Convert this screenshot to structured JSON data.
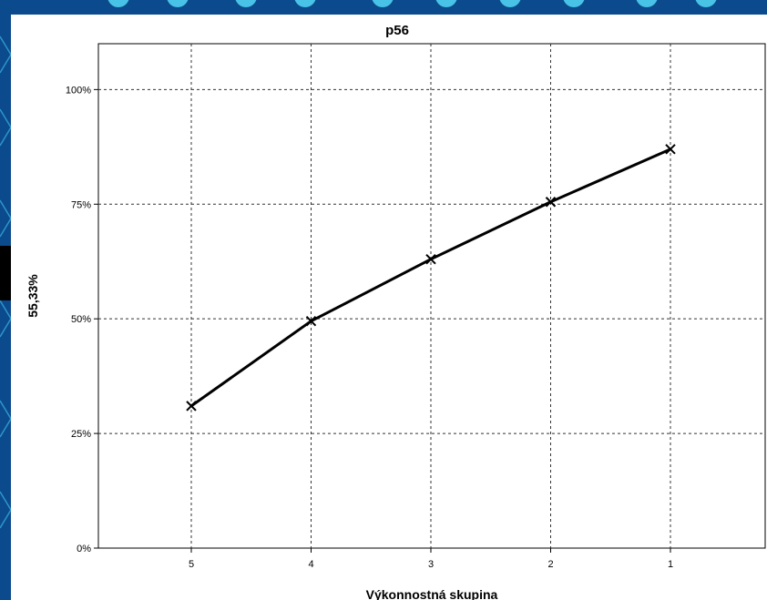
{
  "chart_data": {
    "type": "line",
    "title": "p56",
    "xlabel": "Výkonnostná skupina",
    "ylabel": "55,33%",
    "categories": [
      "5",
      "4",
      "3",
      "2",
      "1"
    ],
    "series": [
      {
        "values": [
          31,
          49.5,
          63,
          75.5,
          87
        ]
      }
    ],
    "ylim": [
      0,
      110
    ],
    "yticks": [
      0,
      25,
      50,
      75,
      100
    ],
    "ytick_labels": [
      "0%",
      "25%",
      "50%",
      "75%",
      "100%"
    ],
    "grid": true,
    "line_color": "#000000",
    "marker": "x"
  },
  "colors": {
    "background": "#0b4a8c",
    "decoration": "#4fd0f0"
  }
}
